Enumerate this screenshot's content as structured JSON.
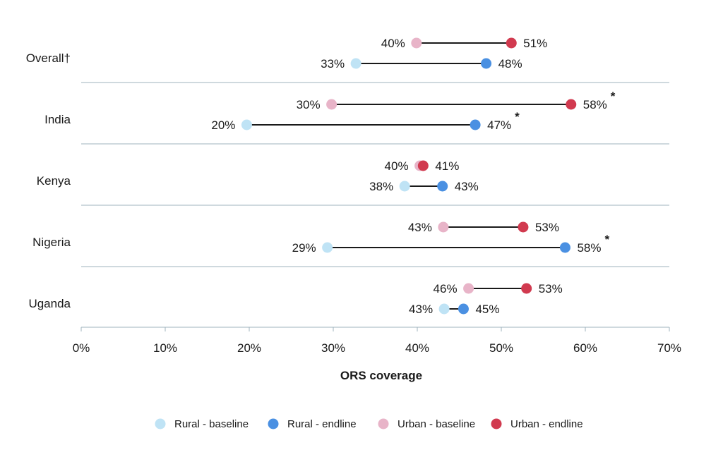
{
  "chart_data": {
    "type": "dumbbell",
    "xlabel": "ORS coverage",
    "xlim": [
      0,
      70
    ],
    "x_ticks": [
      0,
      10,
      20,
      30,
      40,
      50,
      60,
      70
    ],
    "x_tick_labels": [
      "0%",
      "10%",
      "20%",
      "30%",
      "40%",
      "50%",
      "60%",
      "70%"
    ],
    "categories": [
      "Overall†",
      "India",
      "Kenya",
      "Nigeria",
      "Uganda"
    ],
    "series": [
      {
        "name": "Rural - baseline",
        "color": "#bfe3f5",
        "values": [
          32.7,
          19.7,
          38.5,
          29.3,
          43.2
        ],
        "labels": [
          "33%",
          "20%",
          "38%",
          "29%",
          "43%"
        ]
      },
      {
        "name": "Rural - endline",
        "color": "#4a90e2",
        "values": [
          48.2,
          46.9,
          43.0,
          57.6,
          45.5
        ],
        "labels": [
          "48%",
          "47%",
          "43%",
          "58%",
          "45%"
        ]
      },
      {
        "name": "Urban - baseline",
        "color": "#e8b4c8",
        "values": [
          39.9,
          29.8,
          40.3,
          43.1,
          46.1
        ],
        "labels": [
          "40%",
          "30%",
          "40%",
          "43%",
          "46%"
        ]
      },
      {
        "name": "Urban - endline",
        "color": "#d13a4f",
        "values": [
          51.2,
          58.3,
          40.7,
          52.6,
          53.0
        ],
        "labels": [
          "51%",
          "58%",
          "41%",
          "53%",
          "53%"
        ]
      }
    ],
    "significance": [
      {
        "category": "India",
        "group": "urban",
        "label": "*"
      },
      {
        "category": "India",
        "group": "rural",
        "label": "*"
      },
      {
        "category": "Nigeria",
        "group": "rural",
        "label": "*"
      }
    ],
    "legend_position": "bottom",
    "grid": false
  }
}
